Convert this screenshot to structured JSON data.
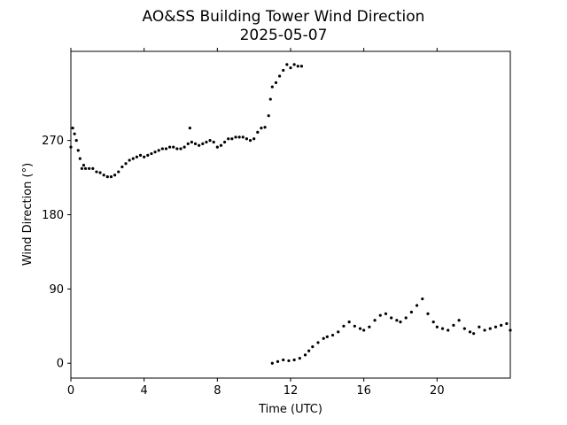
{
  "chart_data": {
    "type": "scatter",
    "title": "AO&SS Building Tower Wind Direction",
    "subtitle": "2025-05-07",
    "xlabel": "Time (UTC)",
    "ylabel": "Wind Direction (°)",
    "xlim": [
      0,
      24
    ],
    "ylim": [
      -18,
      378
    ],
    "xticks": [
      0,
      4,
      8,
      12,
      16,
      20
    ],
    "xtick_labels": [
      "0",
      "4",
      "8",
      "12",
      "16",
      "20"
    ],
    "yticks": [
      0,
      90,
      180,
      270
    ],
    "ytick_labels": [
      "0",
      "90",
      "180",
      "270"
    ],
    "grid": false,
    "marker_color": "#000000",
    "series": [
      {
        "x": [
          0.0,
          0.1,
          0.2,
          0.3,
          0.4,
          0.5,
          0.6,
          0.7,
          0.8,
          1.0,
          1.2,
          1.4,
          1.6,
          1.8,
          2.0,
          2.2,
          2.4,
          2.6,
          2.8,
          3.0,
          3.2,
          3.4,
          3.6,
          3.8,
          4.0,
          4.2,
          4.4,
          4.6,
          4.8,
          5.0,
          5.2,
          5.4,
          5.6,
          5.8,
          6.0,
          6.2,
          6.4,
          6.5,
          6.6,
          6.8,
          7.0,
          7.2,
          7.4,
          7.6,
          7.8,
          8.0,
          8.2,
          8.4,
          8.6,
          8.8,
          9.0,
          9.2,
          9.4,
          9.6,
          9.8,
          10.0,
          10.2,
          10.4,
          10.6,
          10.8,
          10.9,
          11.0,
          11.2,
          11.4,
          11.6,
          11.8,
          12.0,
          12.2,
          12.4,
          12.6
        ],
        "y": [
          262,
          285,
          278,
          270,
          258,
          248,
          236,
          240,
          236,
          236,
          236,
          232,
          231,
          228,
          226,
          226,
          228,
          232,
          238,
          242,
          246,
          248,
          250,
          252,
          250,
          252,
          254,
          256,
          258,
          260,
          260,
          262,
          262,
          260,
          260,
          262,
          266,
          285,
          268,
          266,
          264,
          266,
          268,
          270,
          268,
          262,
          264,
          268,
          272,
          272,
          274,
          274,
          274,
          272,
          270,
          272,
          280,
          285,
          286,
          300,
          320,
          335,
          340,
          348,
          355,
          362,
          358,
          362,
          360,
          360
        ]
      },
      {
        "x": [
          11.0,
          11.3,
          11.6,
          11.9,
          12.2,
          12.5,
          12.8,
          13.0,
          13.2,
          13.5,
          13.8,
          14.0,
          14.3,
          14.6,
          14.9,
          15.2,
          15.5,
          15.8,
          16.0,
          16.3,
          16.6,
          16.9,
          17.2,
          17.5,
          17.8,
          18.0,
          18.3,
          18.6,
          18.9,
          19.2,
          19.5,
          19.8,
          20.0,
          20.3,
          20.6,
          20.9,
          21.2,
          21.5,
          21.8,
          22.0,
          22.3,
          22.6,
          22.9,
          23.2,
          23.5,
          23.8,
          24.0
        ],
        "y": [
          0,
          2,
          4,
          3,
          4,
          6,
          10,
          15,
          20,
          25,
          30,
          32,
          34,
          38,
          45,
          50,
          45,
          42,
          40,
          44,
          52,
          58,
          60,
          55,
          52,
          50,
          55,
          62,
          70,
          78,
          60,
          50,
          44,
          42,
          40,
          46,
          52,
          42,
          38,
          36,
          44,
          40,
          42,
          44,
          46,
          48,
          40
        ]
      }
    ]
  }
}
